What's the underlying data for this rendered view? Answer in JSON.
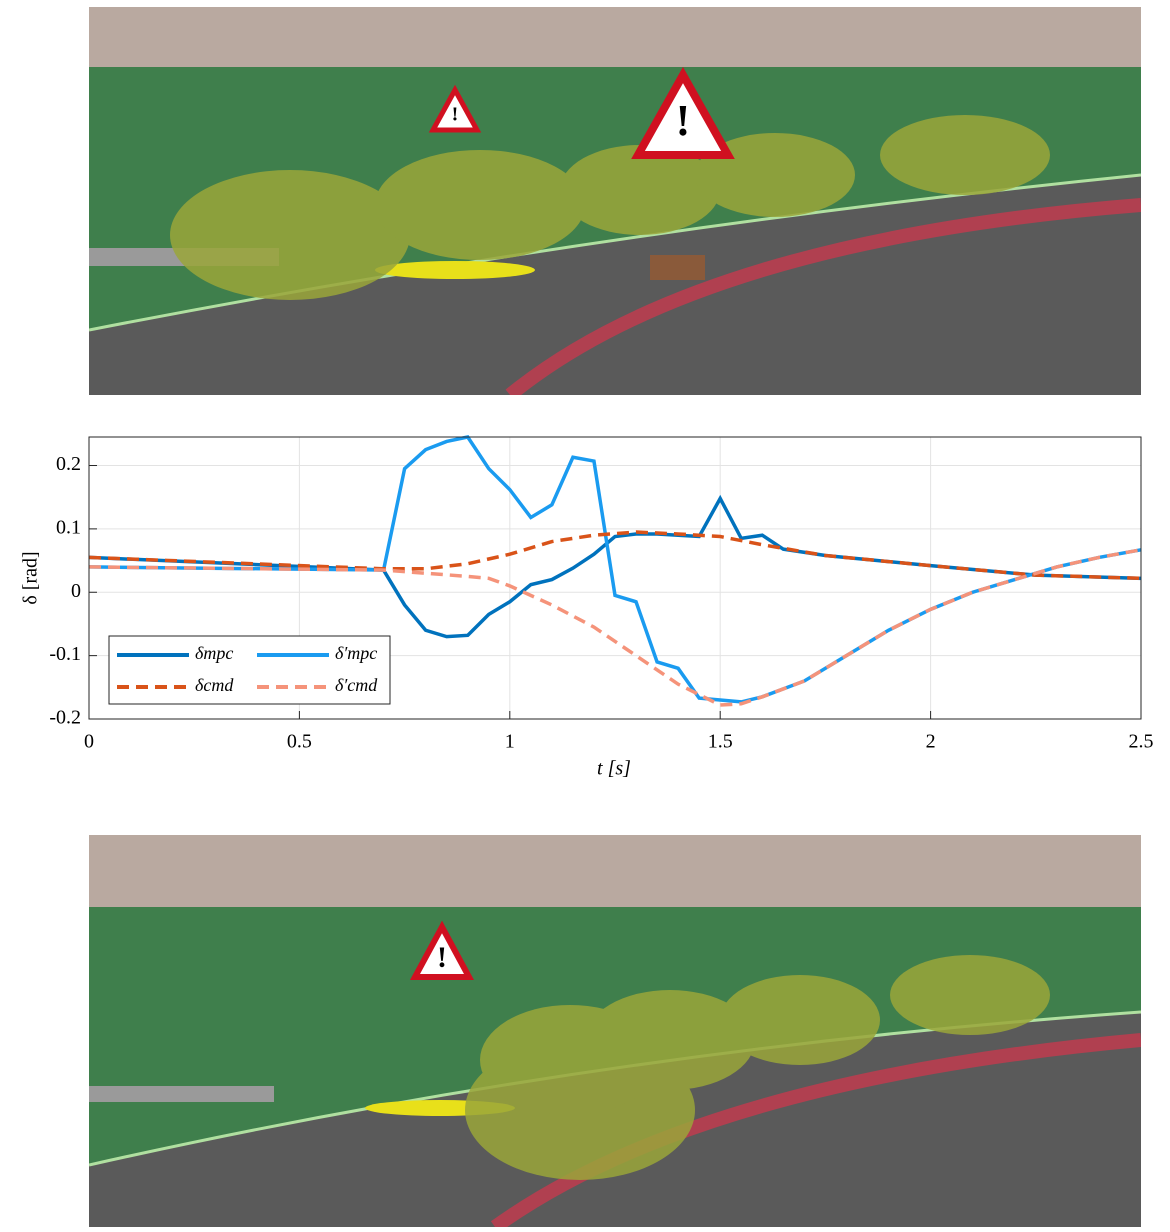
{
  "chart_data": {
    "type": "line",
    "xlabel": "t [s]",
    "ylabel": "δ [rad]",
    "xlim": [
      0,
      2.5
    ],
    "ylim": [
      -0.2,
      0.245
    ],
    "xticks": [
      0,
      0.5,
      1,
      1.5,
      2,
      2.5
    ],
    "yticks": [
      -0.2,
      -0.1,
      0,
      0.1,
      0.2
    ],
    "grid": true,
    "legend": "lower left",
    "series": [
      {
        "name": "δmpc",
        "color": "#0072bd",
        "linestyle": "solid",
        "x": [
          0,
          0.7,
          0.75,
          0.8,
          0.85,
          0.9,
          0.95,
          1.0,
          1.05,
          1.1,
          1.15,
          1.2,
          1.25,
          1.3,
          1.35,
          1.4,
          1.45,
          1.5,
          1.55,
          1.6,
          1.65,
          1.75,
          2.0,
          2.25,
          2.5
        ],
        "values": [
          0.055,
          0.035,
          -0.02,
          -0.06,
          -0.07,
          -0.068,
          -0.035,
          -0.015,
          0.012,
          0.02,
          0.038,
          0.06,
          0.088,
          0.092,
          0.092,
          0.09,
          0.088,
          0.148,
          0.085,
          0.09,
          0.068,
          0.058,
          0.042,
          0.027,
          0.022
        ]
      },
      {
        "name": "δ′mpc",
        "color": "#1a9bf0",
        "linestyle": "solid",
        "x": [
          0,
          0.7,
          0.75,
          0.8,
          0.85,
          0.9,
          0.95,
          1.0,
          1.05,
          1.1,
          1.15,
          1.2,
          1.25,
          1.3,
          1.35,
          1.4,
          1.45,
          1.5,
          1.55,
          1.6,
          1.7,
          1.8,
          1.9,
          2.0,
          2.1,
          2.2,
          2.3,
          2.4,
          2.5
        ],
        "values": [
          0.04,
          0.035,
          0.195,
          0.225,
          0.238,
          0.245,
          0.195,
          0.162,
          0.118,
          0.138,
          0.213,
          0.207,
          -0.005,
          -0.015,
          -0.11,
          -0.12,
          -0.167,
          -0.17,
          -0.173,
          -0.165,
          -0.14,
          -0.1,
          -0.06,
          -0.027,
          0.0,
          0.02,
          0.04,
          0.055,
          0.067
        ]
      },
      {
        "name": "δcmd",
        "color": "#d95319",
        "linestyle": "dashed",
        "x": [
          0,
          0.7,
          0.8,
          0.9,
          1.0,
          1.1,
          1.2,
          1.3,
          1.4,
          1.5,
          1.6,
          1.75,
          2.0,
          2.25,
          2.5
        ],
        "values": [
          0.055,
          0.037,
          0.037,
          0.045,
          0.06,
          0.08,
          0.09,
          0.095,
          0.092,
          0.088,
          0.075,
          0.058,
          0.042,
          0.027,
          0.022
        ]
      },
      {
        "name": "δ′cmd",
        "color": "#f5937a",
        "linestyle": "dashed",
        "x": [
          0,
          0.7,
          0.9,
          0.95,
          1.0,
          1.1,
          1.2,
          1.3,
          1.4,
          1.5,
          1.55,
          1.6,
          1.7,
          1.8,
          1.9,
          2.0,
          2.1,
          2.2,
          2.3,
          2.4,
          2.5
        ],
        "values": [
          0.04,
          0.035,
          0.025,
          0.022,
          0.01,
          -0.02,
          -0.055,
          -0.1,
          -0.145,
          -0.178,
          -0.176,
          -0.165,
          -0.14,
          -0.1,
          -0.06,
          -0.027,
          0.0,
          0.02,
          0.04,
          0.055,
          0.067
        ]
      }
    ]
  }
}
